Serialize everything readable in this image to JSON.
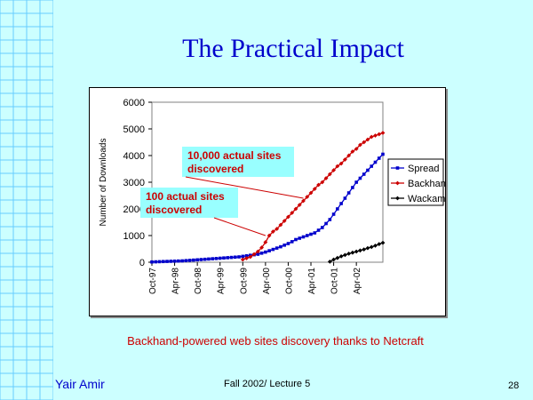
{
  "slide": {
    "title": "The Practical Impact",
    "caption": "Backhand-powered web sites discovery thanks to Netcraft",
    "author": "Yair Amir",
    "lecture": "Fall 2002/ Lecture 5",
    "page": "28"
  },
  "colors": {
    "background": "#ccffff",
    "grid": "#66ccff",
    "title": "#0000cc",
    "caption": "#cc0000",
    "callout_bg": "#99ffff"
  },
  "chart_data": {
    "type": "line",
    "ylabel": "Number of Downloads",
    "xlabel": "",
    "ylim": [
      0,
      6000
    ],
    "yticks": [
      0,
      1000,
      2000,
      3000,
      4000,
      5000,
      6000
    ],
    "xticks": [
      "Oct-97",
      "Apr-98",
      "Oct-98",
      "Apr-99",
      "Oct-99",
      "Apr-00",
      "Oct-00",
      "Apr-01",
      "Oct-01",
      "Apr-02"
    ],
    "xrange_months": [
      0,
      61
    ],
    "series": [
      {
        "name": "Spread",
        "color": "#0000cc",
        "marker": "square",
        "months": [
          0,
          1,
          2,
          3,
          4,
          5,
          6,
          7,
          8,
          9,
          10,
          11,
          12,
          13,
          14,
          15,
          16,
          17,
          18,
          19,
          20,
          21,
          22,
          23,
          24,
          25,
          26,
          27,
          28,
          29,
          30,
          31,
          32,
          33,
          34,
          35,
          36,
          37,
          38,
          39,
          40,
          41,
          42,
          43,
          44,
          45,
          46,
          47,
          48,
          49,
          50,
          51,
          52,
          53,
          54,
          55,
          56,
          57,
          58,
          59,
          60,
          61
        ],
        "values": [
          10,
          15,
          20,
          25,
          30,
          35,
          40,
          45,
          50,
          60,
          70,
          80,
          90,
          100,
          110,
          120,
          130,
          140,
          150,
          160,
          170,
          180,
          190,
          200,
          220,
          240,
          260,
          280,
          300,
          340,
          380,
          430,
          480,
          530,
          580,
          640,
          700,
          770,
          850,
          900,
          950,
          1000,
          1050,
          1100,
          1200,
          1300,
          1450,
          1600,
          1800,
          2000,
          2200,
          2400,
          2600,
          2800,
          3000,
          3150,
          3300,
          3450,
          3600,
          3750,
          3900,
          4050
        ]
      },
      {
        "name": "Backhand",
        "color": "#cc0000",
        "marker": "diamond",
        "months": [
          24,
          25,
          26,
          27,
          28,
          29,
          30,
          31,
          32,
          33,
          34,
          35,
          36,
          37,
          38,
          39,
          40,
          41,
          42,
          43,
          44,
          45,
          46,
          47,
          48,
          49,
          50,
          51,
          52,
          53,
          54,
          55,
          56,
          57,
          58,
          59,
          60,
          61
        ],
        "values": [
          100,
          150,
          200,
          300,
          400,
          550,
          750,
          1000,
          1150,
          1250,
          1400,
          1550,
          1700,
          1850,
          2000,
          2150,
          2300,
          2450,
          2600,
          2750,
          2900,
          3000,
          3150,
          3300,
          3450,
          3600,
          3700,
          3850,
          4000,
          4150,
          4250,
          4400,
          4500,
          4600,
          4700,
          4750,
          4800,
          4850
        ]
      },
      {
        "name": "Wackamole",
        "color": "#000000",
        "marker": "diamond",
        "months": [
          47,
          48,
          49,
          50,
          51,
          52,
          53,
          54,
          55,
          56,
          57,
          58,
          59,
          60,
          61
        ],
        "values": [
          20,
          100,
          160,
          220,
          270,
          320,
          360,
          400,
          440,
          480,
          530,
          570,
          620,
          680,
          730
        ]
      }
    ],
    "annotations": [
      {
        "line1": "10,000 actual sites",
        "line2": "discovered",
        "target_month": 40,
        "target_value": 2400
      },
      {
        "line1": "100 actual sites",
        "line2": "discovered",
        "target_month": 30,
        "target_value": 1000
      }
    ]
  }
}
